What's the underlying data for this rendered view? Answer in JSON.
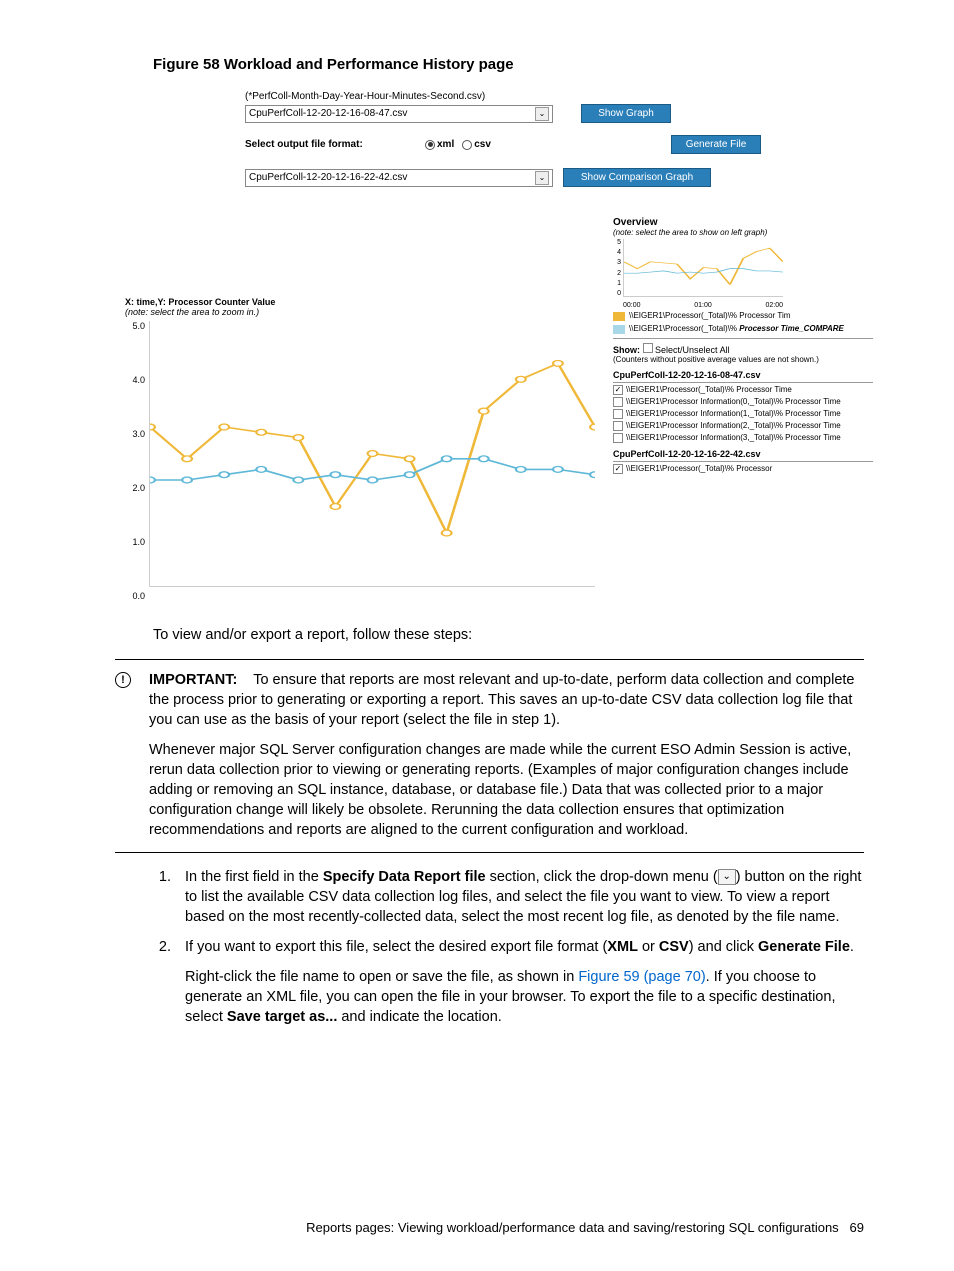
{
  "figure_title": "Figure 58 Workload and Performance History page",
  "screenshot": {
    "file_pattern": "(*PerfColl-Month-Day-Year-Hour-Minutes-Second.csv)",
    "file1": "CpuPerfColl-12-20-12-16-08-47.csv",
    "show_graph_btn": "Show Graph",
    "format_label": "Select output file format:",
    "radio_xml": "xml",
    "radio_csv": "csv",
    "generate_btn": "Generate File",
    "file2": "CpuPerfColl-12-20-12-16-22-42.csv",
    "compare_btn": "Show Comparison Graph",
    "main_chart": {
      "axis_label": "X: time,Y: Processor Counter Value",
      "note": "(note: select the area to zoom in.)",
      "y_ticks": [
        "5.0",
        "4.0",
        "3.0",
        "2.0",
        "1.0",
        "0.0"
      ],
      "series1_color": "#f0b838",
      "series2_color": "#5fb8d8",
      "series1_points": [
        3.0,
        2.4,
        3.0,
        2.9,
        2.8,
        1.5,
        2.5,
        2.4,
        1.0,
        3.3,
        3.9,
        4.2,
        3.0
      ],
      "series2_points": [
        2.0,
        2.0,
        2.1,
        2.2,
        2.0,
        2.1,
        2.0,
        2.1,
        2.4,
        2.4,
        2.2,
        2.2,
        2.1
      ]
    },
    "overview": {
      "title": "Overview",
      "note": "(note: select the area to show on left graph)",
      "y_ticks": [
        "5",
        "4",
        "3",
        "2",
        "1",
        "0"
      ],
      "x_ticks": [
        "00:00",
        "01:00",
        "02:00"
      ],
      "legend1": "\\\\EIGER1\\Processor(_Total)\\% Processor Tim",
      "legend1_em": "Processor Tim",
      "legend2": "\\\\EIGER1\\Processor(_Total)\\% ",
      "legend2_em": "Processor Time_COMPARE",
      "swatch1": "#f0b838",
      "swatch2": "#a8d8e8"
    },
    "show_label": "Show:",
    "select_all": "Select/Unselect All",
    "counters_note": "(Counters without positive average values are not shown.)",
    "filehdr1": "CpuPerfColl-12-20-12-16-08-47.csv",
    "counters1": [
      {
        "checked": true,
        "label": "\\\\EIGER1\\Processor(_Total)\\% Processor Time"
      },
      {
        "checked": false,
        "label": "\\\\EIGER1\\Processor Information(0,_Total)\\% Processor Time"
      },
      {
        "checked": false,
        "label": "\\\\EIGER1\\Processor Information(1,_Total)\\% Processor Time"
      },
      {
        "checked": false,
        "label": "\\\\EIGER1\\Processor Information(2,_Total)\\% Processor Time"
      },
      {
        "checked": false,
        "label": "\\\\EIGER1\\Processor Information(3,_Total)\\% Processor Time"
      }
    ],
    "filehdr2": "CpuPerfColl-12-20-12-16-22-42.csv",
    "counters2": [
      {
        "checked": true,
        "label": "\\\\EIGER1\\Processor(_Total)\\% Processor"
      }
    ]
  },
  "intro_text": "To view and/or export a report, follow these steps:",
  "important": {
    "label": "IMPORTANT:",
    "p1": "To ensure that reports are most relevant and up-to-date, perform data collection and complete the process prior to generating or exporting a report. This saves an up-to-date CSV data collection log file that you can use as the basis of your report (select the file in step 1).",
    "p2": "Whenever major SQL Server configuration changes are made while the current ESO Admin Session is active, rerun data collection prior to viewing or generating reports. (Examples of major configuration changes include adding or removing an SQL instance, database, or database file.) Data that was collected prior to a major configuration change will likely be obsolete. Rerunning the data collection ensures that optimization recommendations and reports are aligned to the current configuration and workload."
  },
  "steps": {
    "s1a": "In the first field in the ",
    "s1b": "Specify Data Report file",
    "s1c": " section, click the drop-down menu (",
    "s1d": ") button on the right to list the available CSV data collection log files, and select the file you want to view. To view a report based on the most recently-collected data, select the most recent log file, as denoted by the file name.",
    "s2a": "If you want to export this file, select the desired export file format (",
    "s2b": "XML",
    "s2c": " or ",
    "s2d": "CSV",
    "s2e": ") and click ",
    "s2f": "Generate File",
    "s2g": ".",
    "s2p2a": "Right-click the file name to open or save the file, as shown in ",
    "s2p2link": "Figure 59 (page 70)",
    "s2p2b": ". If you choose to generate an XML file, you can open the file in your browser. To export the file to a specific destination, select ",
    "s2p2c": "Save target as...",
    "s2p2d": " and indicate the location."
  },
  "footer_text": "Reports pages: Viewing workload/performance data and saving/restoring SQL configurations",
  "page_num": "69"
}
